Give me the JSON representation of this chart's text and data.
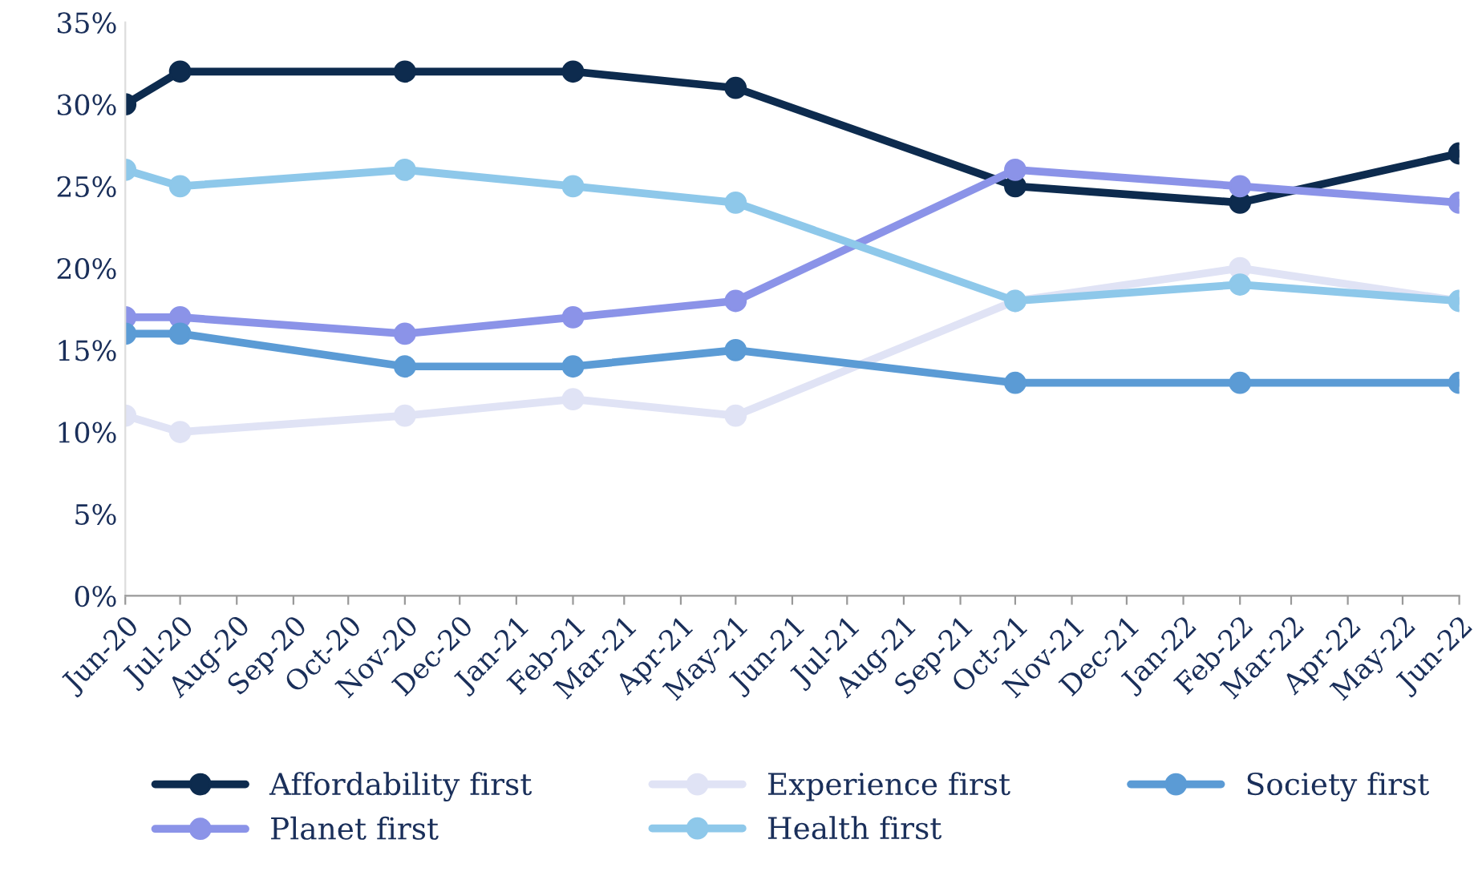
{
  "chart_data": {
    "type": "line",
    "marker": "circle",
    "line_style": "solid",
    "legend": "bottom",
    "grid": false,
    "x": [
      "2020-06",
      "2020-07",
      "2020-11",
      "2021-02",
      "2021-05",
      "2021-10",
      "2022-02",
      "2022-06"
    ],
    "series": [
      {
        "name": "Affordability first",
        "color": "#0d2b4e",
        "values": [
          30,
          32,
          32,
          32,
          31,
          25,
          24,
          27
        ]
      },
      {
        "name": "Planet first",
        "color": "#8b93e8",
        "values": [
          17,
          17,
          16,
          17,
          18,
          26,
          25,
          24
        ]
      },
      {
        "name": "Experience first",
        "color": "#e0e3f5",
        "values": [
          11,
          10,
          11,
          12,
          11,
          18,
          20,
          18
        ]
      },
      {
        "name": "Health first",
        "color": "#8ec8ea",
        "values": [
          26,
          25,
          26,
          25,
          24,
          18,
          19,
          18
        ]
      },
      {
        "name": "Society first",
        "color": "#5b9bd5",
        "values": [
          16,
          16,
          14,
          14,
          15,
          13,
          13,
          13
        ]
      }
    ],
    "ylim": [
      0,
      35
    ],
    "yticks": [
      {
        "value": 0,
        "label": "0%"
      },
      {
        "value": 5,
        "label": "5%"
      },
      {
        "value": 10,
        "label": "10%"
      },
      {
        "value": 15,
        "label": "15%"
      },
      {
        "value": 20,
        "label": "20%"
      },
      {
        "value": 25,
        "label": "25%"
      },
      {
        "value": 30,
        "label": "30%"
      },
      {
        "value": 35,
        "label": "35%"
      }
    ],
    "xlim": [
      "2020-06",
      "2022-06"
    ],
    "xticks": [
      {
        "value": "2020-06",
        "label": "Jun-20"
      },
      {
        "value": "2020-07",
        "label": "Jul-20"
      },
      {
        "value": "2020-08",
        "label": "Aug-20"
      },
      {
        "value": "2020-09",
        "label": "Sep-20"
      },
      {
        "value": "2020-10",
        "label": "Oct-20"
      },
      {
        "value": "2020-11",
        "label": "Nov-20"
      },
      {
        "value": "2020-12",
        "label": "Dec-20"
      },
      {
        "value": "2021-01",
        "label": "Jan-21"
      },
      {
        "value": "2021-02",
        "label": "Feb-21"
      },
      {
        "value": "2021-03",
        "label": "Mar-21"
      },
      {
        "value": "2021-04",
        "label": "Apr-21"
      },
      {
        "value": "2021-05",
        "label": "May-21"
      },
      {
        "value": "2021-06",
        "label": "Jun-21"
      },
      {
        "value": "2021-07",
        "label": "Jul-21"
      },
      {
        "value": "2021-08",
        "label": "Aug-21"
      },
      {
        "value": "2021-09",
        "label": "Sep-21"
      },
      {
        "value": "2021-10",
        "label": "Oct-21"
      },
      {
        "value": "2021-11",
        "label": "Nov-21"
      },
      {
        "value": "2021-12",
        "label": "Dec-21"
      },
      {
        "value": "2022-01",
        "label": "Jan-22"
      },
      {
        "value": "2022-02",
        "label": "Feb-22"
      },
      {
        "value": "2022-03",
        "label": "Mar-22"
      },
      {
        "value": "2022-04",
        "label": "Apr-22"
      },
      {
        "value": "2022-05",
        "label": "May-22"
      },
      {
        "value": "2022-06",
        "label": "Jun-22"
      }
    ]
  }
}
